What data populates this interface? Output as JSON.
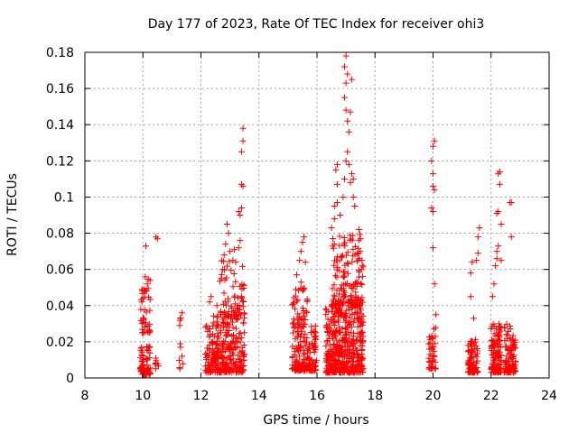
{
  "chart_data": {
    "type": "scatter",
    "title": "Day 177 of 2023, Rate Of TEC Index for receiver ohi3",
    "xlabel": "GPS time / hours",
    "ylabel": "ROTI / TECUs",
    "xlim": [
      8,
      24
    ],
    "ylim": [
      0,
      0.18
    ],
    "xticks": [
      "8",
      "10",
      "12",
      "14",
      "16",
      "18",
      "20",
      "22",
      "24"
    ],
    "yticks": [
      "0",
      "0.02",
      "0.04",
      "0.06",
      "0.08",
      "0.1",
      "0.12",
      "0.14",
      "0.16",
      "0.18"
    ],
    "grid": true,
    "marker": "plus",
    "color": "#ff0000",
    "clusters": [
      {
        "x": [
          9.9,
          10.25
        ],
        "y": [
          0.002,
          0.018
        ],
        "n": 70
      },
      {
        "x": [
          9.9,
          10.25
        ],
        "y": [
          0.025,
          0.058
        ],
        "n": 40
      },
      {
        "x": [
          10.4,
          10.55
        ],
        "y": [
          0.005,
          0.025
        ],
        "n": 8
      },
      {
        "x": [
          11.25,
          11.4
        ],
        "y": [
          0.005,
          0.035
        ],
        "n": 8
      },
      {
        "x": [
          12.15,
          12.6
        ],
        "y": [
          0.003,
          0.035
        ],
        "n": 90
      },
      {
        "x": [
          12.55,
          13.5
        ],
        "y": [
          0.003,
          0.035
        ],
        "n": 220
      },
      {
        "x": [
          12.65,
          13.5
        ],
        "y": [
          0.035,
          0.065
        ],
        "n": 60
      },
      {
        "x": [
          15.15,
          15.7
        ],
        "y": [
          0.004,
          0.05
        ],
        "n": 150
      },
      {
        "x": [
          15.7,
          16.0
        ],
        "y": [
          0.004,
          0.03
        ],
        "n": 60
      },
      {
        "x": [
          16.3,
          17.6
        ],
        "y": [
          0.003,
          0.04
        ],
        "n": 420
      },
      {
        "x": [
          16.5,
          17.6
        ],
        "y": [
          0.04,
          0.08
        ],
        "n": 160
      },
      {
        "x": [
          19.85,
          20.1
        ],
        "y": [
          0.005,
          0.03
        ],
        "n": 40
      },
      {
        "x": [
          21.2,
          21.55
        ],
        "y": [
          0.003,
          0.022
        ],
        "n": 90
      },
      {
        "x": [
          22.0,
          22.35
        ],
        "y": [
          0.003,
          0.03
        ],
        "n": 110
      },
      {
        "x": [
          22.45,
          22.85
        ],
        "y": [
          0.003,
          0.03
        ],
        "n": 100
      }
    ],
    "points": [
      [
        10.1,
        0.073
      ],
      [
        10.45,
        0.078
      ],
      [
        10.5,
        0.077
      ],
      [
        10.0,
        0.044
      ],
      [
        10.05,
        0.048
      ],
      [
        10.15,
        0.052
      ],
      [
        11.3,
        0.017
      ],
      [
        11.35,
        0.012
      ],
      [
        11.3,
        0.033
      ],
      [
        11.35,
        0.036
      ],
      [
        12.3,
        0.042
      ],
      [
        12.35,
        0.045
      ],
      [
        12.55,
        0.04
      ],
      [
        12.7,
        0.055
      ],
      [
        12.75,
        0.06
      ],
      [
        12.8,
        0.068
      ],
      [
        12.85,
        0.074
      ],
      [
        12.9,
        0.085
      ],
      [
        12.95,
        0.08
      ],
      [
        13.0,
        0.07
      ],
      [
        13.1,
        0.065
      ],
      [
        13.15,
        0.071
      ],
      [
        13.2,
        0.064
      ],
      [
        13.3,
        0.072
      ],
      [
        13.35,
        0.076
      ],
      [
        13.35,
        0.09
      ],
      [
        13.4,
        0.094
      ],
      [
        13.45,
        0.106
      ],
      [
        13.4,
        0.107
      ],
      [
        13.4,
        0.125
      ],
      [
        13.45,
        0.131
      ],
      [
        13.45,
        0.138
      ],
      [
        13.3,
        0.092
      ],
      [
        15.3,
        0.057
      ],
      [
        15.4,
        0.065
      ],
      [
        15.45,
        0.07
      ],
      [
        15.5,
        0.075
      ],
      [
        15.55,
        0.078
      ],
      [
        15.6,
        0.064
      ],
      [
        15.45,
        0.053
      ],
      [
        16.5,
        0.083
      ],
      [
        16.6,
        0.088
      ],
      [
        16.6,
        0.095
      ],
      [
        16.7,
        0.097
      ],
      [
        16.7,
        0.107
      ],
      [
        16.65,
        0.115
      ],
      [
        16.7,
        0.118
      ],
      [
        16.8,
        0.09
      ],
      [
        16.9,
        0.1
      ],
      [
        16.95,
        0.11
      ],
      [
        17.0,
        0.12
      ],
      [
        17.05,
        0.125
      ],
      [
        17.1,
        0.118
      ],
      [
        17.15,
        0.108
      ],
      [
        17.2,
        0.113
      ],
      [
        17.25,
        0.11
      ],
      [
        17.1,
        0.136
      ],
      [
        17.05,
        0.142
      ],
      [
        17.0,
        0.148
      ],
      [
        16.95,
        0.155
      ],
      [
        17.0,
        0.163
      ],
      [
        17.05,
        0.168
      ],
      [
        16.95,
        0.172
      ],
      [
        17.0,
        0.178
      ],
      [
        17.15,
        0.147
      ],
      [
        17.2,
        0.165
      ],
      [
        17.25,
        0.1
      ],
      [
        17.3,
        0.095
      ],
      [
        17.45,
        0.082
      ],
      [
        17.5,
        0.077
      ],
      [
        17.55,
        0.065
      ],
      [
        20.0,
        0.128
      ],
      [
        20.05,
        0.131
      ],
      [
        19.95,
        0.12
      ],
      [
        20.0,
        0.113
      ],
      [
        20.0,
        0.106
      ],
      [
        20.05,
        0.104
      ],
      [
        19.95,
        0.094
      ],
      [
        20.0,
        0.092
      ],
      [
        20.0,
        0.072
      ],
      [
        20.05,
        0.052
      ],
      [
        20.1,
        0.035
      ],
      [
        21.3,
        0.058
      ],
      [
        21.35,
        0.064
      ],
      [
        21.3,
        0.045
      ],
      [
        21.4,
        0.033
      ],
      [
        21.5,
        0.065
      ],
      [
        21.55,
        0.069
      ],
      [
        21.55,
        0.078
      ],
      [
        21.6,
        0.083
      ],
      [
        22.05,
        0.045
      ],
      [
        22.1,
        0.052
      ],
      [
        22.15,
        0.062
      ],
      [
        22.2,
        0.066
      ],
      [
        22.2,
        0.07
      ],
      [
        22.25,
        0.073
      ],
      [
        22.2,
        0.091
      ],
      [
        22.25,
        0.092
      ],
      [
        22.3,
        0.107
      ],
      [
        22.25,
        0.113
      ],
      [
        22.3,
        0.114
      ],
      [
        22.35,
        0.085
      ],
      [
        22.35,
        0.065
      ],
      [
        22.65,
        0.097
      ],
      [
        22.7,
        0.097
      ],
      [
        22.7,
        0.078
      ]
    ]
  }
}
